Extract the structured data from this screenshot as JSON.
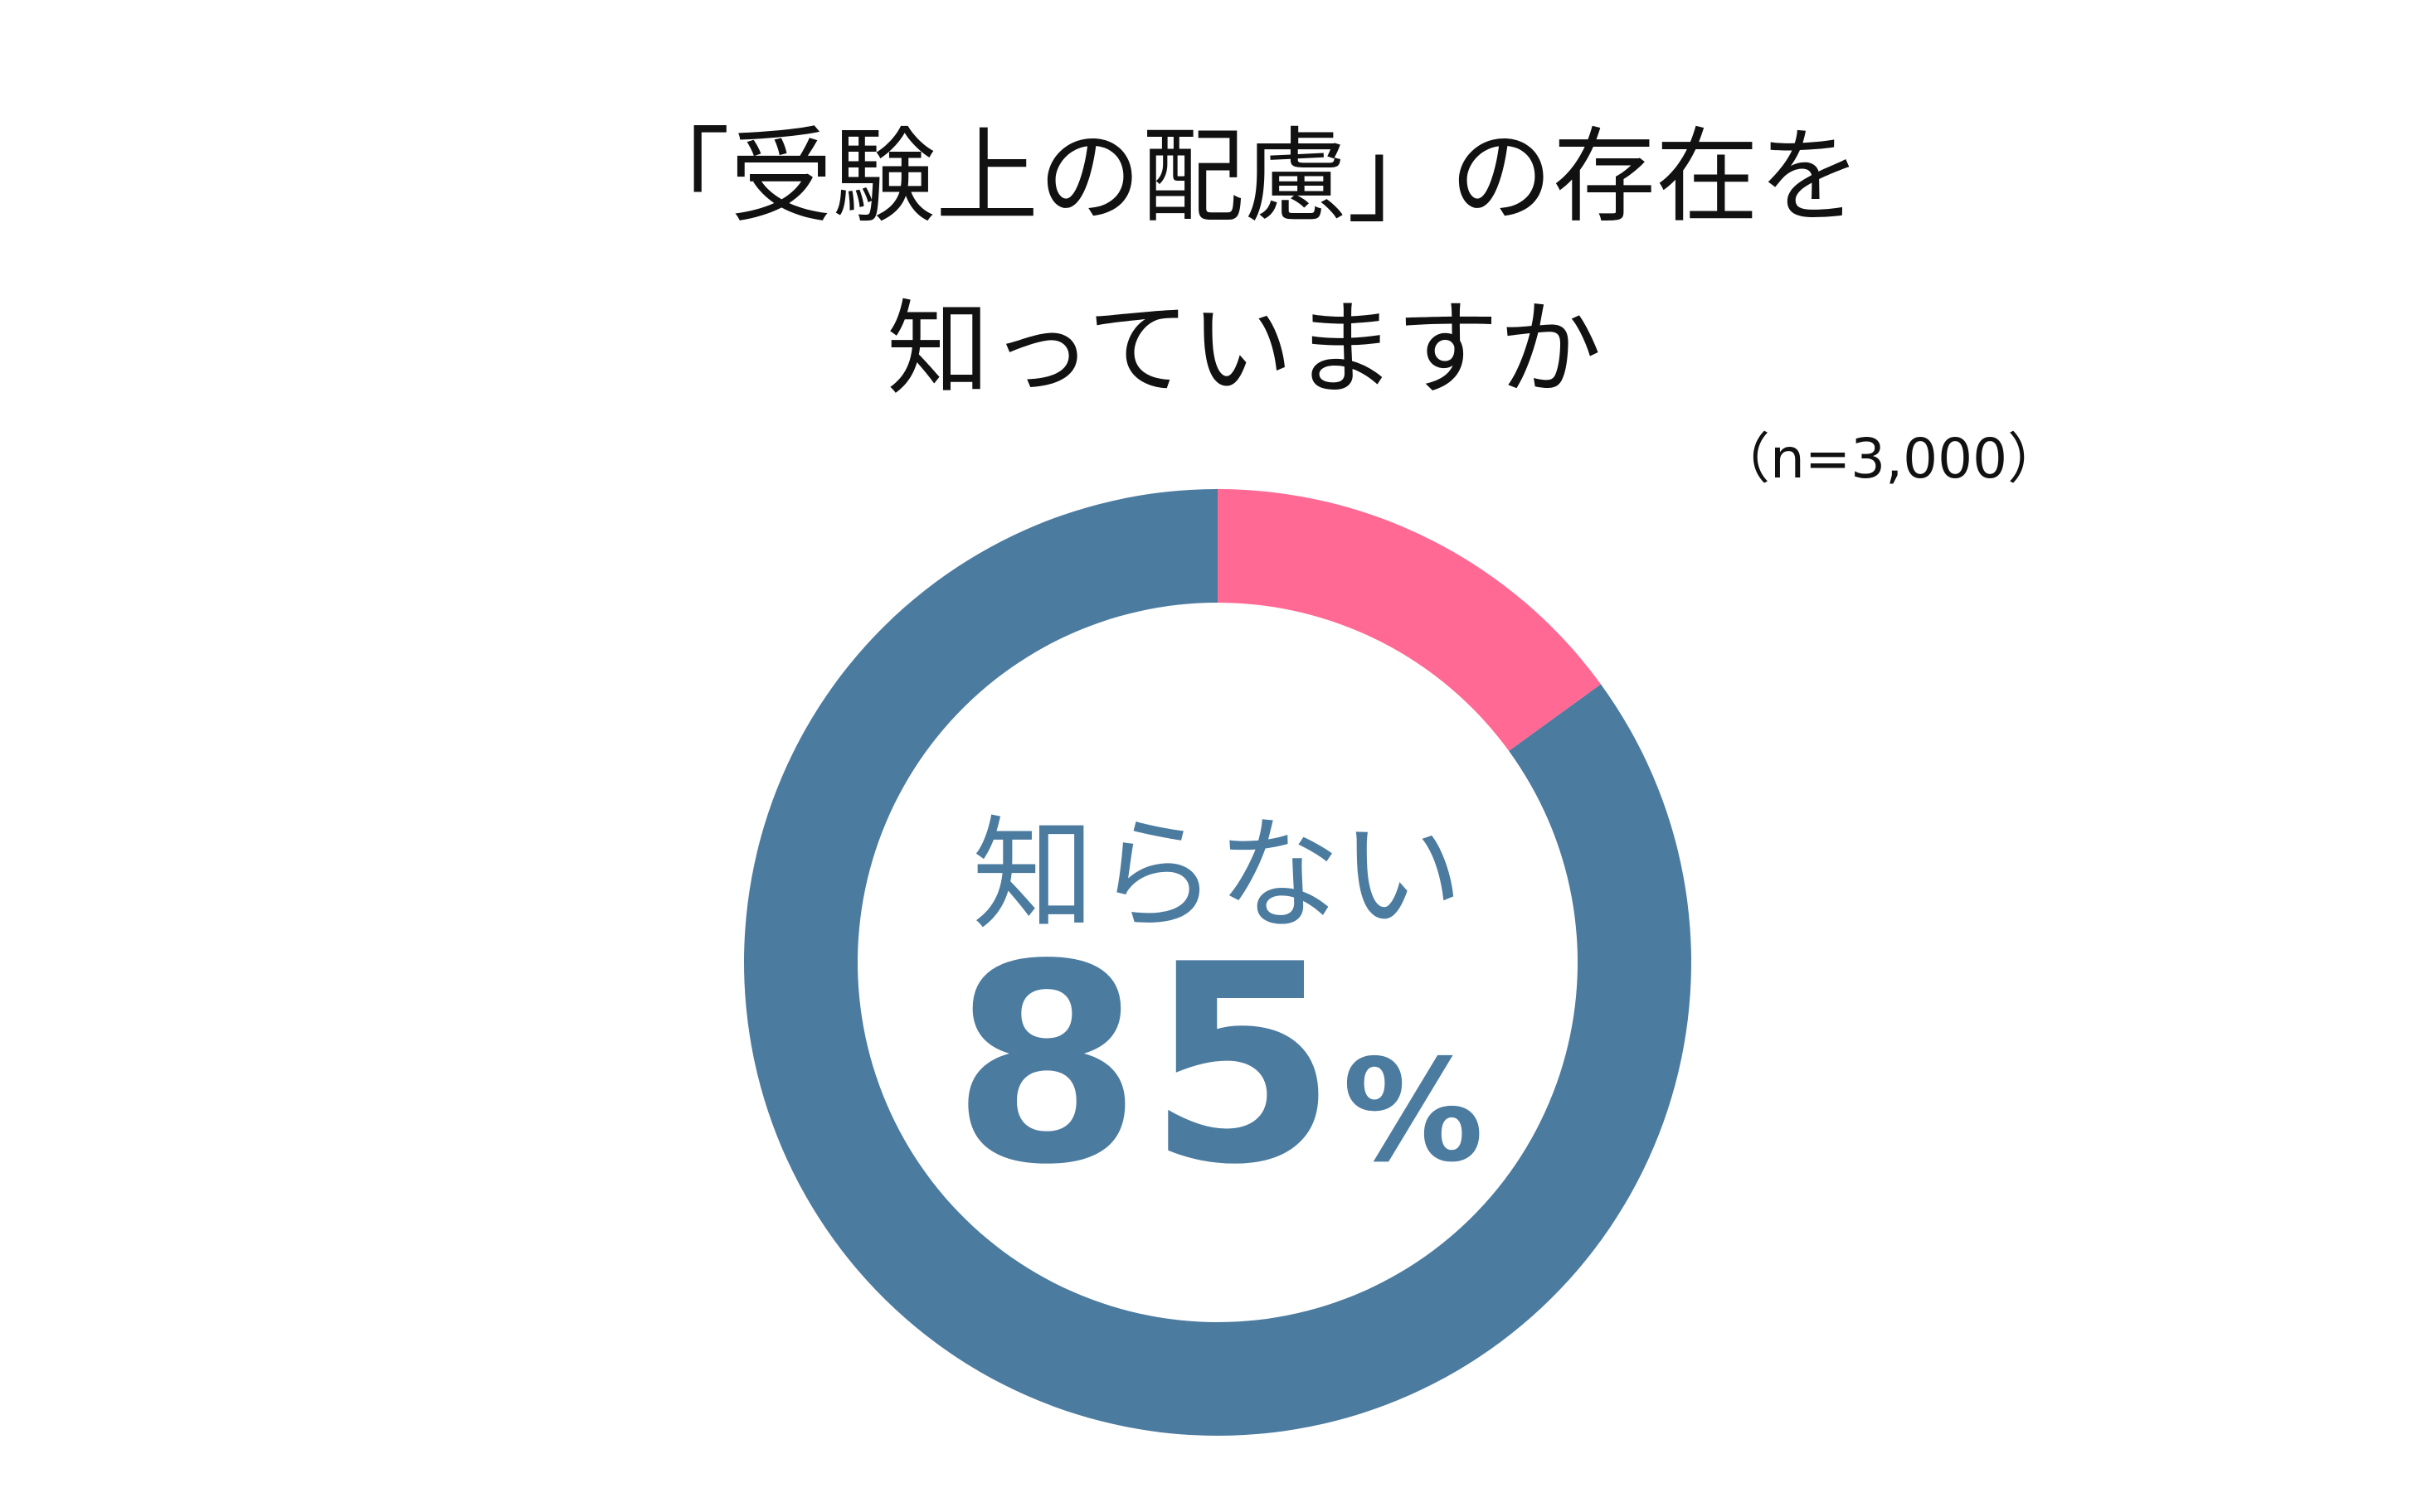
{
  "chart_data": {
    "type": "pie",
    "style": "donut",
    "title": [
      "「受験上の配慮」の存在を",
      "知っていますか"
    ],
    "subtitle": "（n=3,000）",
    "slices": [
      {
        "name": "知らない",
        "value": 85,
        "color": "#4c7ba0"
      },
      {
        "name": "",
        "value": 15,
        "color": "#ff6994"
      }
    ],
    "center_label": {
      "text": "知らない",
      "value": "85",
      "unit": "%"
    }
  }
}
